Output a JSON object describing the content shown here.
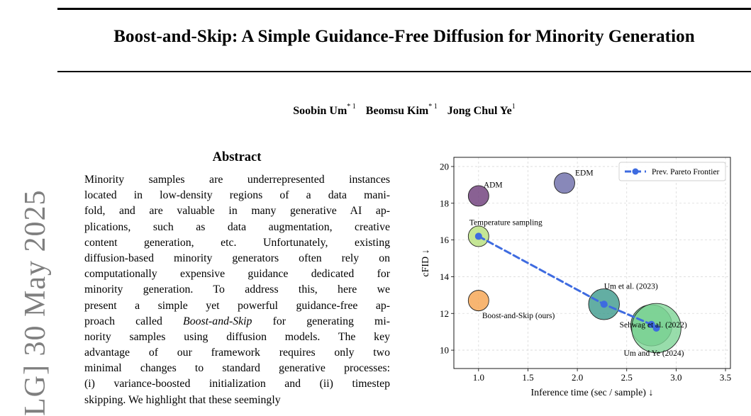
{
  "arxiv_stamp": "LG] 30 May 2025",
  "title": "Boost-and-Skip: A Simple Guidance-Free Diffusion for Minority Generation",
  "authors": [
    {
      "name": "Soobin Um",
      "affil": "* 1"
    },
    {
      "name": "Beomsu Kim",
      "affil": "* 1"
    },
    {
      "name": "Jong Chul Ye",
      "affil": "1"
    }
  ],
  "abstract": {
    "heading": "Abstract",
    "lines": [
      "Minority samples are underrepresented instances",
      "located in low-density regions of a data mani-",
      "fold, and are valuable in many generative AI ap-",
      "plications, such as data augmentation, creative",
      "content generation, etc. Unfortunately, existing",
      "diffusion-based minority generators often rely on",
      "computationally expensive guidance dedicated for",
      "minority generation. To address this, here we",
      "present a simple yet powerful guidance-free ap-",
      "proach called Boost-and-Skip for generating mi-",
      "nority samples using diffusion models. The key",
      "advantage of our framework requires only two",
      "minimal changes to standard generative processes:",
      "(i) variance-boosted initialization and (ii) timestep",
      "skipping. We highlight that these seemingly"
    ]
  },
  "chart_data": {
    "type": "scatter",
    "xlabel": "Inference time (sec / sample) ↓",
    "ylabel": "cFID ↓",
    "xlim": [
      0.75,
      3.55
    ],
    "ylim": [
      9.0,
      20.5
    ],
    "xticks": [
      1.0,
      1.5,
      2.0,
      2.5,
      3.0,
      3.5
    ],
    "xtick_labels": [
      "1.0",
      "1.5",
      "2.0",
      "2.5",
      "3.0",
      "3.5"
    ],
    "yticks": [
      10,
      12,
      14,
      16,
      18,
      20
    ],
    "ytick_labels": [
      "10",
      "12",
      "14",
      "16",
      "18",
      "20"
    ],
    "grid": true,
    "legend_position": "top-right",
    "points": [
      {
        "label": "ADM",
        "x": 1.0,
        "y": 18.4,
        "size": 1.0,
        "color": "#6b3a78"
      },
      {
        "label": "EDM",
        "x": 1.87,
        "y": 19.1,
        "size": 1.0,
        "color": "#6a6aa8"
      },
      {
        "label": "Temperature sampling",
        "x": 1.0,
        "y": 16.2,
        "size": 1.0,
        "color": "#b6e07a"
      },
      {
        "label": "Boost-and-Skip (ours)",
        "x": 1.0,
        "y": 12.7,
        "size": 1.0,
        "color": "#f5a34e"
      },
      {
        "label": "Um et al. (2023)",
        "x": 2.27,
        "y": 12.5,
        "size": 1.5,
        "color": "#3c9a8c"
      },
      {
        "label": "Sehwag et al. (2022)",
        "x": 2.75,
        "y": 11.35,
        "size": 2.0,
        "color": "#5fbf7e"
      },
      {
        "label": "Um and Ye (2024)",
        "x": 2.8,
        "y": 11.2,
        "size": 2.4,
        "color": "#7ed596"
      }
    ],
    "series": [
      {
        "name": "Prev. Pareto Frontier",
        "color": "#3e6be0",
        "x": [
          1.0,
          2.27,
          2.75,
          2.8
        ],
        "y": [
          16.2,
          12.5,
          11.4,
          11.2
        ]
      }
    ]
  }
}
